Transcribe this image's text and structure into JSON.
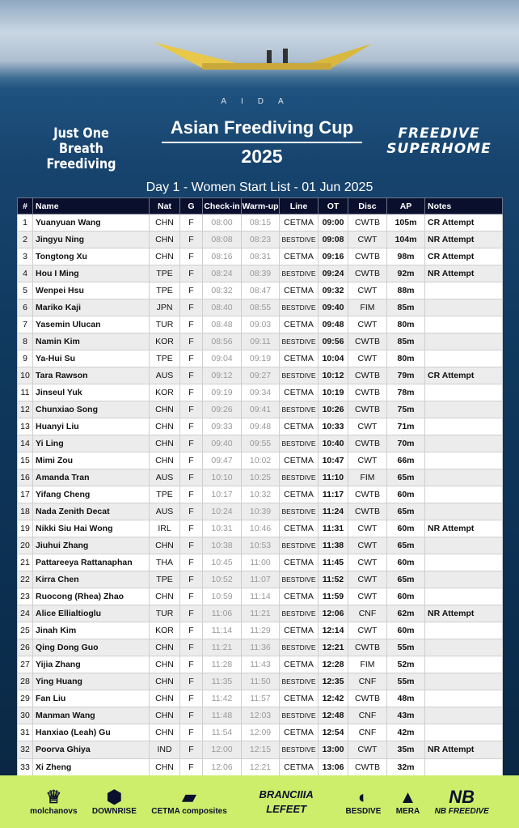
{
  "header": {
    "org": "AIDA",
    "title": "Asian Freediving Cup",
    "year": "2025",
    "left_logo": [
      "Just One Breath",
      "Freediving"
    ],
    "right_logo": [
      "FREEDIVE",
      "SUPERHOME"
    ],
    "subtitle": "Day 1 - Women Start List - 01 Jun 2025"
  },
  "table": {
    "columns": [
      "#",
      "Name",
      "Nat",
      "G",
      "Check-in",
      "Warm-up",
      "Line",
      "OT",
      "Disc",
      "AP",
      "Notes"
    ],
    "rows": [
      [
        "1",
        "Yuanyuan Wang",
        "CHN",
        "F",
        "08:00",
        "08:15",
        "CETMA",
        "09:00",
        "CWTB",
        "105m",
        "CR Attempt"
      ],
      [
        "2",
        "Jingyu Ning",
        "CHN",
        "F",
        "08:08",
        "08:23",
        "BESTDIVE",
        "09:08",
        "CWT",
        "104m",
        "NR Attempt"
      ],
      [
        "3",
        "Tongtong Xu",
        "CHN",
        "F",
        "08:16",
        "08:31",
        "CETMA",
        "09:16",
        "CWTB",
        "98m",
        "CR Attempt"
      ],
      [
        "4",
        "Hou I Ming",
        "TPE",
        "F",
        "08:24",
        "08:39",
        "BESTDIVE",
        "09:24",
        "CWTB",
        "92m",
        "NR Attempt"
      ],
      [
        "5",
        "Wenpei Hsu",
        "TPE",
        "F",
        "08:32",
        "08:47",
        "CETMA",
        "09:32",
        "CWT",
        "88m",
        ""
      ],
      [
        "6",
        "Mariko Kaji",
        "JPN",
        "F",
        "08:40",
        "08:55",
        "BESTDIVE",
        "09:40",
        "FIM",
        "85m",
        ""
      ],
      [
        "7",
        "Yasemin Ulucan",
        "TUR",
        "F",
        "08:48",
        "09:03",
        "CETMA",
        "09:48",
        "CWT",
        "80m",
        ""
      ],
      [
        "8",
        "Namin Kim",
        "KOR",
        "F",
        "08:56",
        "09:11",
        "BESTDIVE",
        "09:56",
        "CWTB",
        "85m",
        ""
      ],
      [
        "9",
        "Ya-Hui Su",
        "TPE",
        "F",
        "09:04",
        "09:19",
        "CETMA",
        "10:04",
        "CWT",
        "80m",
        ""
      ],
      [
        "10",
        "Tara Rawson",
        "AUS",
        "F",
        "09:12",
        "09:27",
        "BESTDIVE",
        "10:12",
        "CWTB",
        "79m",
        "CR Attempt"
      ],
      [
        "11",
        "Jinseul Yuk",
        "KOR",
        "F",
        "09:19",
        "09:34",
        "CETMA",
        "10:19",
        "CWTB",
        "78m",
        ""
      ],
      [
        "12",
        "Chunxiao Song",
        "CHN",
        "F",
        "09:26",
        "09:41",
        "BESTDIVE",
        "10:26",
        "CWTB",
        "75m",
        ""
      ],
      [
        "13",
        "Huanyi Liu",
        "CHN",
        "F",
        "09:33",
        "09:48",
        "CETMA",
        "10:33",
        "CWT",
        "71m",
        ""
      ],
      [
        "14",
        "Yi Ling",
        "CHN",
        "F",
        "09:40",
        "09:55",
        "BESTDIVE",
        "10:40",
        "CWTB",
        "70m",
        ""
      ],
      [
        "15",
        "Mimi Zou",
        "CHN",
        "F",
        "09:47",
        "10:02",
        "CETMA",
        "10:47",
        "CWT",
        "66m",
        ""
      ],
      [
        "16",
        "Amanda Tran",
        "AUS",
        "F",
        "10:10",
        "10:25",
        "BESTDIVE",
        "11:10",
        "FIM",
        "65m",
        ""
      ],
      [
        "17",
        "Yifang Cheng",
        "TPE",
        "F",
        "10:17",
        "10:32",
        "CETMA",
        "11:17",
        "CWTB",
        "60m",
        ""
      ],
      [
        "18",
        "Nada Zenith Decat",
        "AUS",
        "F",
        "10:24",
        "10:39",
        "BESTDIVE",
        "11:24",
        "CWTB",
        "65m",
        ""
      ],
      [
        "19",
        "Nikki Siu Hai Wong",
        "IRL",
        "F",
        "10:31",
        "10:46",
        "CETMA",
        "11:31",
        "CWT",
        "60m",
        "NR Attempt"
      ],
      [
        "20",
        "Jiuhui Zhang",
        "CHN",
        "F",
        "10:38",
        "10:53",
        "BESTDIVE",
        "11:38",
        "CWT",
        "65m",
        ""
      ],
      [
        "21",
        "Pattareeya Rattanaphan",
        "THA",
        "F",
        "10:45",
        "11:00",
        "CETMA",
        "11:45",
        "CWT",
        "60m",
        ""
      ],
      [
        "22",
        "Kirra Chen",
        "TPE",
        "F",
        "10:52",
        "11:07",
        "BESTDIVE",
        "11:52",
        "CWT",
        "65m",
        ""
      ],
      [
        "23",
        "Ruocong (Rhea) Zhao",
        "CHN",
        "F",
        "10:59",
        "11:14",
        "CETMA",
        "11:59",
        "CWT",
        "60m",
        ""
      ],
      [
        "24",
        "Alice Ellialtioglu",
        "TUR",
        "F",
        "11:06",
        "11:21",
        "BESTDIVE",
        "12:06",
        "CNF",
        "62m",
        "NR Attempt"
      ],
      [
        "25",
        "Jinah Kim",
        "KOR",
        "F",
        "11:14",
        "11:29",
        "CETMA",
        "12:14",
        "CWT",
        "60m",
        ""
      ],
      [
        "26",
        "Qing Dong Guo",
        "CHN",
        "F",
        "11:21",
        "11:36",
        "BESTDIVE",
        "12:21",
        "CWTB",
        "55m",
        ""
      ],
      [
        "27",
        "Yijia Zhang",
        "CHN",
        "F",
        "11:28",
        "11:43",
        "CETMA",
        "12:28",
        "FIM",
        "52m",
        ""
      ],
      [
        "28",
        "Ying Huang",
        "CHN",
        "F",
        "11:35",
        "11:50",
        "BESTDIVE",
        "12:35",
        "CNF",
        "55m",
        ""
      ],
      [
        "29",
        "Fan Liu",
        "CHN",
        "F",
        "11:42",
        "11:57",
        "CETMA",
        "12:42",
        "CWTB",
        "48m",
        ""
      ],
      [
        "30",
        "Manman Wang",
        "CHN",
        "F",
        "11:48",
        "12:03",
        "BESTDIVE",
        "12:48",
        "CNF",
        "43m",
        ""
      ],
      [
        "31",
        "Hanxiao (Leah) Gu",
        "CHN",
        "F",
        "11:54",
        "12:09",
        "CETMA",
        "12:54",
        "CNF",
        "42m",
        ""
      ],
      [
        "32",
        "Poorva Ghiya",
        "IND",
        "F",
        "12:00",
        "12:15",
        "BESTDIVE",
        "13:00",
        "CWT",
        "35m",
        "NR Attempt"
      ],
      [
        "33",
        "Xi Zheng",
        "CHN",
        "F",
        "12:06",
        "12:21",
        "CETMA",
        "13:06",
        "CWTB",
        "32m",
        ""
      ]
    ]
  },
  "sponsors": [
    "molchanovs",
    "DOWNRISE",
    "CETMA composites",
    "BRANCIIIA LEFEET",
    "BESDIVE",
    "MERA",
    "NB FREEDIVE"
  ],
  "colors": {
    "header_bg": "#0a0f2e",
    "footer_bg": "#cdee6a"
  }
}
